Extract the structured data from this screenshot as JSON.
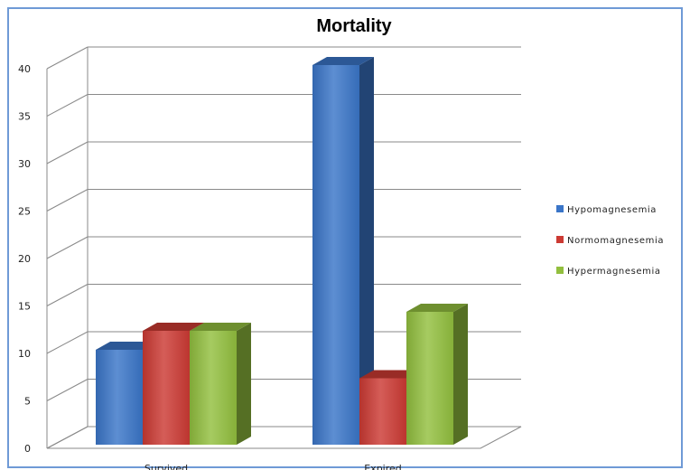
{
  "chart_data": {
    "type": "bar",
    "title": "Mortality",
    "categories": [
      "Survived",
      "Expired"
    ],
    "series": [
      {
        "name": "Hypomagnesemia",
        "values": [
          10,
          40
        ],
        "color": "#3a75c8"
      },
      {
        "name": "Normomagnesemia",
        "values": [
          12,
          7
        ],
        "color": "#cc3a33"
      },
      {
        "name": "Hypermagnesemia",
        "values": [
          12,
          14
        ],
        "color": "#92bf3e"
      }
    ],
    "ylim": [
      0,
      40
    ],
    "yticks": [
      0,
      5,
      10,
      15,
      20,
      25,
      30,
      35,
      40
    ],
    "grid": true,
    "legend": "right"
  }
}
